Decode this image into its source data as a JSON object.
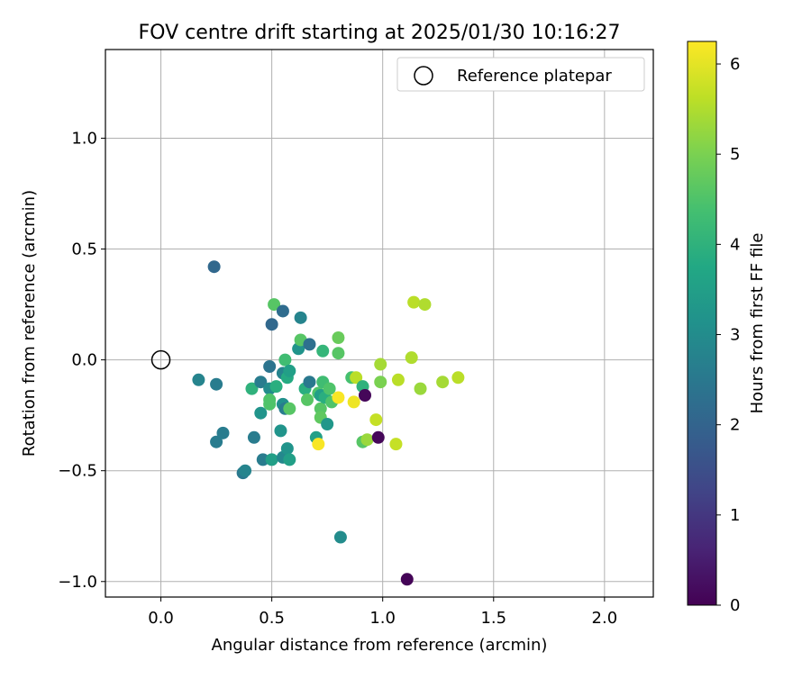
{
  "chart_data": {
    "type": "scatter",
    "title": "FOV centre drift starting at 2025/01/30 10:16:27",
    "xlabel": "Angular distance from reference (arcmin)",
    "ylabel": "Rotation from reference (arcmin)",
    "xlim": [
      -0.25,
      2.22
    ],
    "ylim": [
      -1.07,
      1.4
    ],
    "xticks": [
      0.0,
      0.5,
      1.0,
      1.5,
      2.0
    ],
    "xtick_labels": [
      "0.0",
      "0.5",
      "1.0",
      "1.5",
      "2.0"
    ],
    "yticks": [
      -1.0,
      -0.5,
      0.0,
      0.5,
      1.0
    ],
    "ytick_labels": [
      "−1.0",
      "−0.5",
      "0.0",
      "0.5",
      "1.0"
    ],
    "grid": true,
    "legend": {
      "placement": "top-right",
      "entries": [
        "Reference platepar"
      ]
    },
    "reference_point": {
      "x": 0.0,
      "y": 0.0
    },
    "colorbar": {
      "label": "Hours from first FF file",
      "colormap": "viridis",
      "range": [
        0,
        6.25
      ],
      "ticks": [
        0,
        1,
        2,
        3,
        4,
        5,
        6
      ],
      "tick_labels": [
        "0",
        "1",
        "2",
        "3",
        "4",
        "5",
        "6"
      ]
    },
    "points": [
      {
        "x": 0.24,
        "y": 0.42,
        "h": 2.1
      },
      {
        "x": 0.17,
        "y": -0.09,
        "h": 2.8
      },
      {
        "x": 0.25,
        "y": -0.11,
        "h": 2.6
      },
      {
        "x": 0.25,
        "y": -0.37,
        "h": 2.6
      },
      {
        "x": 0.28,
        "y": -0.33,
        "h": 2.6
      },
      {
        "x": 0.37,
        "y": -0.51,
        "h": 2.5
      },
      {
        "x": 0.38,
        "y": -0.5,
        "h": 2.8
      },
      {
        "x": 0.41,
        "y": -0.13,
        "h": 4.0
      },
      {
        "x": 0.42,
        "y": -0.35,
        "h": 2.6
      },
      {
        "x": 0.45,
        "y": -0.1,
        "h": 2.6
      },
      {
        "x": 0.45,
        "y": -0.24,
        "h": 3.2
      },
      {
        "x": 0.46,
        "y": -0.45,
        "h": 2.6
      },
      {
        "x": 0.49,
        "y": -0.13,
        "h": 3.0
      },
      {
        "x": 0.49,
        "y": -0.18,
        "h": 4.5
      },
      {
        "x": 0.49,
        "y": -0.2,
        "h": 4.5
      },
      {
        "x": 0.49,
        "y": -0.03,
        "h": 2.4
      },
      {
        "x": 0.5,
        "y": 0.16,
        "h": 2.1
      },
      {
        "x": 0.5,
        "y": -0.45,
        "h": 3.5
      },
      {
        "x": 0.51,
        "y": 0.25,
        "h": 4.6
      },
      {
        "x": 0.52,
        "y": -0.12,
        "h": 3.9
      },
      {
        "x": 0.54,
        "y": -0.32,
        "h": 3.2
      },
      {
        "x": 0.55,
        "y": 0.22,
        "h": 2.2
      },
      {
        "x": 0.55,
        "y": -0.06,
        "h": 2.8
      },
      {
        "x": 0.55,
        "y": -0.2,
        "h": 3.1
      },
      {
        "x": 0.55,
        "y": -0.44,
        "h": 2.9
      },
      {
        "x": 0.56,
        "y": 0.0,
        "h": 4.3
      },
      {
        "x": 0.56,
        "y": -0.22,
        "h": 2.6
      },
      {
        "x": 0.57,
        "y": -0.08,
        "h": 3.8
      },
      {
        "x": 0.57,
        "y": -0.4,
        "h": 3.2
      },
      {
        "x": 0.58,
        "y": -0.05,
        "h": 3.5
      },
      {
        "x": 0.58,
        "y": -0.22,
        "h": 4.6
      },
      {
        "x": 0.58,
        "y": -0.45,
        "h": 3.5
      },
      {
        "x": 0.62,
        "y": 0.05,
        "h": 3.2
      },
      {
        "x": 0.63,
        "y": 0.19,
        "h": 2.8
      },
      {
        "x": 0.63,
        "y": 0.09,
        "h": 4.6
      },
      {
        "x": 0.65,
        "y": -0.13,
        "h": 3.9
      },
      {
        "x": 0.66,
        "y": -0.18,
        "h": 4.6
      },
      {
        "x": 0.67,
        "y": 0.07,
        "h": 2.3
      },
      {
        "x": 0.67,
        "y": -0.1,
        "h": 2.5
      },
      {
        "x": 0.7,
        "y": -0.35,
        "h": 3.5
      },
      {
        "x": 0.71,
        "y": -0.15,
        "h": 4.5
      },
      {
        "x": 0.72,
        "y": -0.16,
        "h": 3.5
      },
      {
        "x": 0.72,
        "y": -0.22,
        "h": 4.6
      },
      {
        "x": 0.72,
        "y": -0.26,
        "h": 4.7
      },
      {
        "x": 0.73,
        "y": 0.04,
        "h": 4.1
      },
      {
        "x": 0.73,
        "y": -0.1,
        "h": 4.3
      },
      {
        "x": 0.74,
        "y": -0.17,
        "h": 3.9
      },
      {
        "x": 0.75,
        "y": -0.29,
        "h": 3.3
      },
      {
        "x": 0.76,
        "y": -0.13,
        "h": 4.5
      },
      {
        "x": 0.77,
        "y": -0.19,
        "h": 4.5
      },
      {
        "x": 0.71,
        "y": -0.38,
        "h": 6.2
      },
      {
        "x": 0.8,
        "y": 0.1,
        "h": 4.8
      },
      {
        "x": 0.8,
        "y": 0.03,
        "h": 4.6
      },
      {
        "x": 0.8,
        "y": -0.17,
        "h": 6.2
      },
      {
        "x": 0.81,
        "y": -0.8,
        "h": 3.0
      },
      {
        "x": 0.86,
        "y": -0.08,
        "h": 4.4
      },
      {
        "x": 0.87,
        "y": -0.19,
        "h": 6.1
      },
      {
        "x": 0.88,
        "y": -0.08,
        "h": 5.6
      },
      {
        "x": 0.91,
        "y": -0.37,
        "h": 4.6
      },
      {
        "x": 0.91,
        "y": -0.12,
        "h": 4.0
      },
      {
        "x": 0.92,
        "y": -0.16,
        "h": 0.1
      },
      {
        "x": 0.93,
        "y": -0.36,
        "h": 5.3
      },
      {
        "x": 0.97,
        "y": -0.27,
        "h": 5.7
      },
      {
        "x": 0.98,
        "y": -0.35,
        "h": 0.1
      },
      {
        "x": 0.99,
        "y": -0.02,
        "h": 5.4
      },
      {
        "x": 0.99,
        "y": -0.1,
        "h": 5.0
      },
      {
        "x": 1.06,
        "y": -0.38,
        "h": 5.7
      },
      {
        "x": 1.07,
        "y": -0.09,
        "h": 5.6
      },
      {
        "x": 1.11,
        "y": -0.99,
        "h": 0.05
      },
      {
        "x": 1.13,
        "y": 0.01,
        "h": 5.5
      },
      {
        "x": 1.14,
        "y": 0.26,
        "h": 5.6
      },
      {
        "x": 1.17,
        "y": -0.13,
        "h": 5.3
      },
      {
        "x": 1.19,
        "y": 0.25,
        "h": 5.5
      },
      {
        "x": 1.27,
        "y": -0.1,
        "h": 5.4
      },
      {
        "x": 1.34,
        "y": -0.08,
        "h": 5.6
      }
    ]
  }
}
